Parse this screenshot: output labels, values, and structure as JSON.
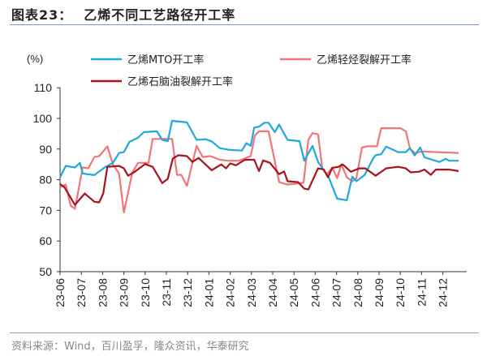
{
  "header": {
    "figure_number": "图表23：",
    "title": "乙烯不同工艺路径开工率"
  },
  "footer": {
    "source": "资料来源：Wind，百川盈孚，隆众资讯，华泰研究"
  },
  "chart_data": {
    "type": "line",
    "title": "乙烯不同工艺路径开工率",
    "ylabel": "(%)",
    "xlabel": "",
    "ylim": [
      50,
      110
    ],
    "yticks": [
      50,
      60,
      70,
      80,
      90,
      100,
      110
    ],
    "xticks": [
      "23-06",
      "23-07",
      "23-08",
      "23-09",
      "23-10",
      "23-11",
      "23-12",
      "24-01",
      "24-02",
      "24-03",
      "24-04",
      "24-05",
      "24-06",
      "24-07",
      "24-08",
      "24-09",
      "24-10",
      "24-11",
      "24-12"
    ],
    "xrange": [
      "2023-06-01",
      "2024-12-31"
    ],
    "grid": false,
    "legend_placement": "top",
    "series": [
      {
        "name": "乙烯MTO开工率",
        "color": "#1fa8dd",
        "points": [
          [
            "2023-06-01",
            80.8
          ],
          [
            "2023-06-09",
            84.5
          ],
          [
            "2023-06-22",
            84
          ],
          [
            "2023-06-29",
            85.5
          ],
          [
            "2023-07-03",
            82
          ],
          [
            "2023-07-20",
            81.5
          ],
          [
            "2023-08-04",
            84
          ],
          [
            "2023-08-16",
            85.5
          ],
          [
            "2023-08-25",
            88.7
          ],
          [
            "2023-09-01",
            89
          ],
          [
            "2023-09-09",
            92.4
          ],
          [
            "2023-09-21",
            93.7
          ],
          [
            "2023-09-29",
            95.5
          ],
          [
            "2023-10-18",
            95.8
          ],
          [
            "2023-10-26",
            93
          ],
          [
            "2023-11-03",
            92.6
          ],
          [
            "2023-11-09",
            99.2
          ],
          [
            "2023-11-30",
            98.7
          ],
          [
            "2023-12-14",
            93
          ],
          [
            "2023-12-27",
            93.2
          ],
          [
            "2024-01-05",
            92.5
          ],
          [
            "2024-01-17",
            90.3
          ],
          [
            "2024-01-29",
            89.8
          ],
          [
            "2024-02-17",
            89.5
          ],
          [
            "2024-02-23",
            91.9
          ],
          [
            "2024-02-29",
            91
          ],
          [
            "2024-03-05",
            97
          ],
          [
            "2024-03-12",
            97.3
          ],
          [
            "2024-03-20",
            98.6
          ],
          [
            "2024-03-26",
            98.6
          ],
          [
            "2024-04-04",
            95.5
          ],
          [
            "2024-04-10",
            98
          ],
          [
            "2024-04-22",
            93
          ],
          [
            "2024-05-09",
            92.6
          ],
          [
            "2024-05-16",
            86.2
          ],
          [
            "2024-05-28",
            91
          ],
          [
            "2024-06-05",
            85.8
          ],
          [
            "2024-06-20",
            80.8
          ],
          [
            "2024-07-02",
            73.8
          ],
          [
            "2024-07-16",
            73.3
          ],
          [
            "2024-07-24",
            81
          ],
          [
            "2024-07-30",
            79.5
          ],
          [
            "2024-08-11",
            81.6
          ],
          [
            "2024-08-23",
            86.8
          ],
          [
            "2024-08-27",
            88
          ],
          [
            "2024-09-04",
            88.3
          ],
          [
            "2024-09-11",
            90.8
          ],
          [
            "2024-09-28",
            89
          ],
          [
            "2024-10-09",
            89
          ],
          [
            "2024-10-15",
            90.3
          ],
          [
            "2024-10-22",
            87.9
          ],
          [
            "2024-10-30",
            90.5
          ],
          [
            "2024-11-05",
            87.3
          ],
          [
            "2024-11-26",
            85.8
          ],
          [
            "2024-12-05",
            86.8
          ],
          [
            "2024-12-10",
            86.2
          ],
          [
            "2024-12-24",
            86.2
          ]
        ]
      },
      {
        "name": "乙烯轻烃裂解开工率",
        "color": "#f0757a",
        "points": [
          [
            "2023-06-01",
            77.6
          ],
          [
            "2023-06-09",
            78.4
          ],
          [
            "2023-06-16",
            71.5
          ],
          [
            "2023-06-22",
            70.5
          ],
          [
            "2023-07-03",
            84
          ],
          [
            "2023-07-11",
            83.7
          ],
          [
            "2023-07-20",
            87.4
          ],
          [
            "2023-07-27",
            87.7
          ],
          [
            "2023-08-08",
            90.9
          ],
          [
            "2023-08-16",
            85
          ],
          [
            "2023-08-25",
            82
          ],
          [
            "2023-09-01",
            69.3
          ],
          [
            "2023-09-13",
            82.4
          ],
          [
            "2023-09-21",
            85.5
          ],
          [
            "2023-10-06",
            85.5
          ],
          [
            "2023-10-12",
            93.3
          ],
          [
            "2023-11-09",
            93.3
          ],
          [
            "2023-11-16",
            81.6
          ],
          [
            "2023-11-22",
            81.6
          ],
          [
            "2023-11-30",
            78
          ],
          [
            "2023-12-14",
            91
          ],
          [
            "2023-12-23",
            87.4
          ],
          [
            "2024-01-03",
            87.7
          ],
          [
            "2024-01-17",
            86.5
          ],
          [
            "2024-01-29",
            86.2
          ],
          [
            "2024-02-13",
            86.2
          ],
          [
            "2024-02-29",
            87.7
          ],
          [
            "2024-03-06",
            94.4
          ],
          [
            "2024-03-12",
            95.8
          ],
          [
            "2024-03-26",
            95.8
          ],
          [
            "2024-04-10",
            79.2
          ],
          [
            "2024-04-22",
            78.4
          ],
          [
            "2024-05-15",
            79
          ],
          [
            "2024-05-22",
            93
          ],
          [
            "2024-05-28",
            95.2
          ],
          [
            "2024-06-05",
            94.8
          ],
          [
            "2024-06-11",
            83.7
          ],
          [
            "2024-06-17",
            81.8
          ],
          [
            "2024-06-25",
            83.9
          ],
          [
            "2024-07-02",
            80.5
          ],
          [
            "2024-07-08",
            85
          ],
          [
            "2024-07-16",
            80.8
          ],
          [
            "2024-07-24",
            79.5
          ],
          [
            "2024-07-30",
            80.5
          ],
          [
            "2024-08-07",
            90.5
          ],
          [
            "2024-08-15",
            90.9
          ],
          [
            "2024-08-29",
            90.9
          ],
          [
            "2024-09-04",
            96.8
          ],
          [
            "2024-10-01",
            96.8
          ],
          [
            "2024-10-09",
            95.8
          ],
          [
            "2024-10-15",
            90.2
          ],
          [
            "2024-10-22",
            88.7
          ],
          [
            "2024-11-02",
            89.2
          ],
          [
            "2024-12-24",
            88.7
          ]
        ]
      },
      {
        "name": "乙烯石脑油裂解开工率",
        "color": "#a8131a",
        "points": [
          [
            "2023-06-01",
            78.6
          ],
          [
            "2023-06-07",
            77.6
          ],
          [
            "2023-06-22",
            71.8
          ],
          [
            "2023-07-06",
            75.5
          ],
          [
            "2023-07-20",
            72.8
          ],
          [
            "2023-07-27",
            72.6
          ],
          [
            "2023-08-02",
            75.5
          ],
          [
            "2023-08-08",
            84.2
          ],
          [
            "2023-08-25",
            84.5
          ],
          [
            "2023-09-01",
            83.7
          ],
          [
            "2023-09-07",
            81.3
          ],
          [
            "2023-09-17",
            82.7
          ],
          [
            "2023-10-01",
            85.1
          ],
          [
            "2023-10-12",
            84.2
          ],
          [
            "2023-10-26",
            78.9
          ],
          [
            "2023-11-03",
            80.3
          ],
          [
            "2023-11-10",
            86.9
          ],
          [
            "2023-11-18",
            88
          ],
          [
            "2023-11-30",
            87.7
          ],
          [
            "2023-12-08",
            85.8
          ],
          [
            "2023-12-17",
            87.1
          ],
          [
            "2024-01-05",
            83.1
          ],
          [
            "2024-01-19",
            85
          ],
          [
            "2024-01-26",
            83.7
          ],
          [
            "2024-02-01",
            85.3
          ],
          [
            "2024-02-09",
            84.7
          ],
          [
            "2024-02-21",
            86.5
          ],
          [
            "2024-03-05",
            86.5
          ],
          [
            "2024-03-12",
            82.8
          ],
          [
            "2024-03-18",
            86.3
          ],
          [
            "2024-03-28",
            85.5
          ],
          [
            "2024-04-10",
            81.8
          ],
          [
            "2024-04-17",
            82.7
          ],
          [
            "2024-04-22",
            79.5
          ],
          [
            "2024-05-07",
            79.2
          ],
          [
            "2024-05-16",
            77.1
          ],
          [
            "2024-05-22",
            76.8
          ],
          [
            "2024-06-05",
            83.7
          ],
          [
            "2024-06-13",
            83.3
          ],
          [
            "2024-06-19",
            80.8
          ],
          [
            "2024-06-25",
            83.9
          ],
          [
            "2024-07-04",
            84.2
          ],
          [
            "2024-07-10",
            85
          ],
          [
            "2024-07-22",
            82.6
          ],
          [
            "2024-08-03",
            83.7
          ],
          [
            "2024-08-12",
            83.7
          ],
          [
            "2024-08-27",
            81.3
          ],
          [
            "2024-09-11",
            83.7
          ],
          [
            "2024-09-28",
            84.2
          ],
          [
            "2024-10-09",
            83.7
          ],
          [
            "2024-10-16",
            82.4
          ],
          [
            "2024-10-28",
            82.6
          ],
          [
            "2024-11-05",
            83.3
          ],
          [
            "2024-11-14",
            81.6
          ],
          [
            "2024-11-21",
            83.3
          ],
          [
            "2024-12-10",
            83.3
          ],
          [
            "2024-12-24",
            82.8
          ]
        ]
      }
    ]
  }
}
